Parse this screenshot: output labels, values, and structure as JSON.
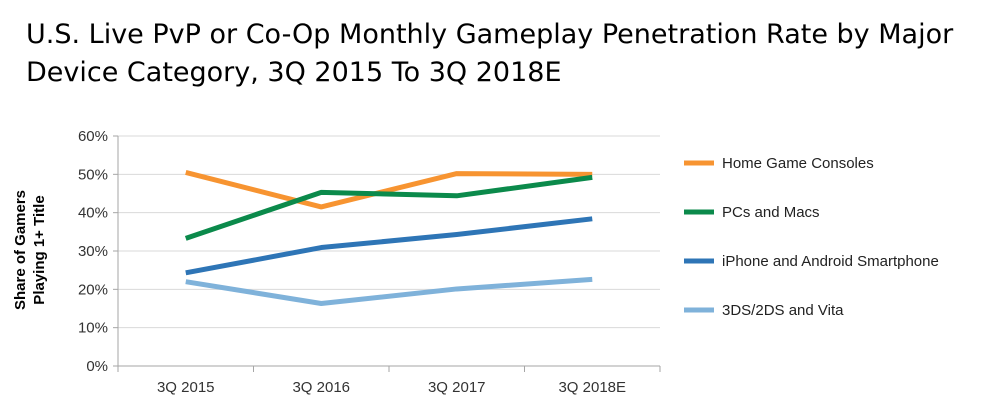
{
  "chart_data": {
    "type": "line",
    "title": "U.S. Live PvP or Co-Op Monthly Gameplay Penetration Rate by Major Device Category, 3Q 2015 To 3Q 2018E",
    "ylabel": "Share of Gamers\nPlaying 1+ Title",
    "xlabel": "",
    "categories": [
      "3Q 2015",
      "3Q 2016",
      "3Q 2017",
      "3Q 2018E"
    ],
    "ylim": [
      0,
      60
    ],
    "yticks": [
      0,
      10,
      20,
      30,
      40,
      50,
      60
    ],
    "ytick_labels": [
      "0%",
      "10%",
      "20%",
      "30%",
      "40%",
      "50%",
      "60%"
    ],
    "grid": "horizontal",
    "legend_position": "right",
    "series": [
      {
        "name": "Home Game Consoles",
        "color": "#F79431",
        "values": [
          50.5,
          41.5,
          50.2,
          50.0
        ]
      },
      {
        "name": "PCs and Macs",
        "color": "#0B8A4B",
        "values": [
          33.3,
          45.3,
          44.4,
          49.2
        ]
      },
      {
        "name": "iPhone and Android Smartphone",
        "color": "#2E75B6",
        "values": [
          24.3,
          30.9,
          34.3,
          38.4
        ]
      },
      {
        "name": "3DS/2DS and Vita",
        "color": "#7FB2DA",
        "values": [
          22.0,
          16.3,
          20.1,
          22.6
        ]
      }
    ]
  }
}
